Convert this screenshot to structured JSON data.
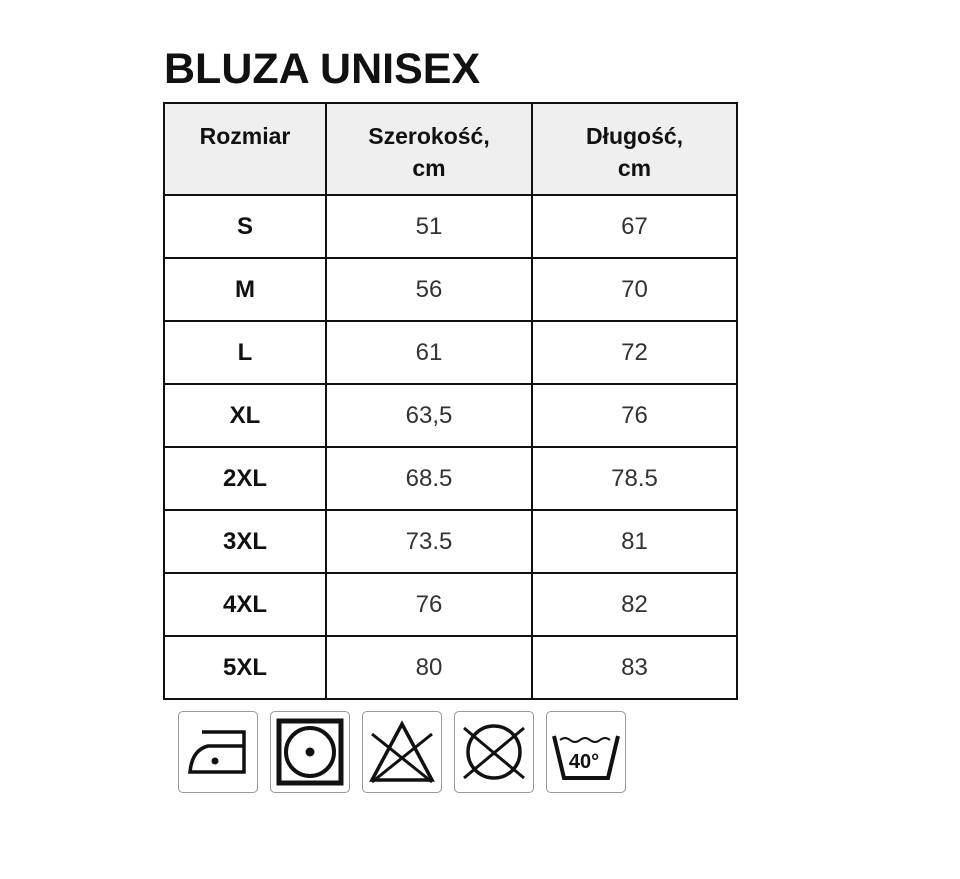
{
  "title": "BLUZA UNISEX",
  "table": {
    "headers": [
      "Rozmiar",
      "Szerokość,\ncm",
      "Długość,\ncm"
    ],
    "header_lines": [
      [
        "Rozmiar"
      ],
      [
        "Szerokość,",
        "cm"
      ],
      [
        "Długość,",
        "cm"
      ]
    ],
    "rows": [
      [
        "S",
        "51",
        "67"
      ],
      [
        "M",
        "56",
        "70"
      ],
      [
        "L",
        "61",
        "72"
      ],
      [
        "XL",
        "63,5",
        "76"
      ],
      [
        "2XL",
        "68.5",
        "78.5"
      ],
      [
        "3XL",
        "73.5",
        "81"
      ],
      [
        "4XL",
        "76",
        "82"
      ],
      [
        "5XL",
        "80",
        "83"
      ]
    ]
  },
  "care_icons": [
    {
      "name": "iron-low-temperature-icon"
    },
    {
      "name": "tumble-dry-icon"
    },
    {
      "name": "do-not-bleach-icon"
    },
    {
      "name": "do-not-dry-clean-icon"
    },
    {
      "name": "wash-40-icon",
      "label": "40°"
    }
  ]
}
